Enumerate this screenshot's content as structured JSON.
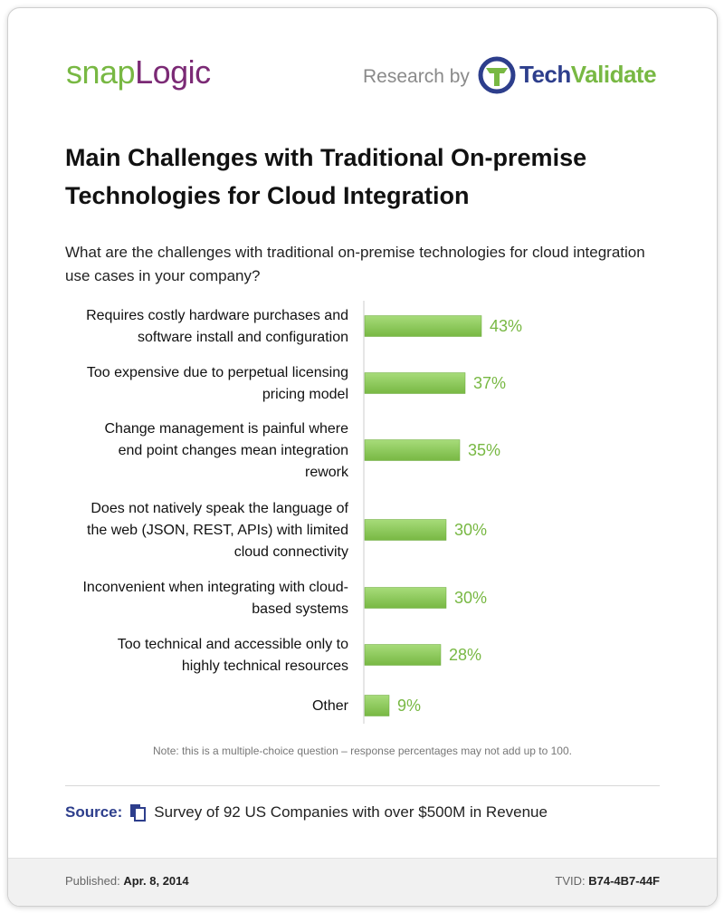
{
  "header": {
    "brand_left_a": "snap",
    "brand_left_b": "Logic",
    "research_by": "Research by",
    "brand_right_a": "Tech",
    "brand_right_b": "Validate"
  },
  "title": "Main Challenges with Traditional On-premise Technologies for Cloud Integration",
  "question": "What are the challenges with traditional on-premise technologies for cloud integration use cases in your company?",
  "note": "Note: this is a multiple-choice question – response percentages may not add up to 100.",
  "source": {
    "label": "Source:",
    "text": "Survey of 92 US Companies with over $500M in Revenue"
  },
  "footer": {
    "published_label": "Published:",
    "published_date": "Apr. 8, 2014",
    "tvid_label": "TVID:",
    "tvid_value": "B74-4B7-44F"
  },
  "colors": {
    "bar": "#78b843",
    "bar_light": "#a7dc7a",
    "accent_blue": "#2d3e8c",
    "accent_purple": "#7b2a75"
  },
  "chart_data": {
    "type": "bar",
    "orientation": "horizontal",
    "categories": [
      [
        "Requires costly hardware purchases and",
        "software install and configuration"
      ],
      [
        "Too expensive due to perpetual licensing",
        "pricing model"
      ],
      [
        "Change management is painful where",
        "end point changes mean integration",
        "rework"
      ],
      [
        "Does not natively speak the language of",
        "the web (JSON, REST, APIs) with limited",
        "cloud connectivity"
      ],
      [
        "Inconvenient when integrating with cloud-",
        "based systems"
      ],
      [
        "Too technical and accessible only to",
        "highly technical resources"
      ],
      [
        "Other"
      ]
    ],
    "values": [
      43,
      37,
      35,
      30,
      30,
      28,
      9
    ],
    "value_labels": [
      "43%",
      "37%",
      "35%",
      "30%",
      "30%",
      "28%",
      "9%"
    ],
    "unit": "%",
    "grid": false
  }
}
